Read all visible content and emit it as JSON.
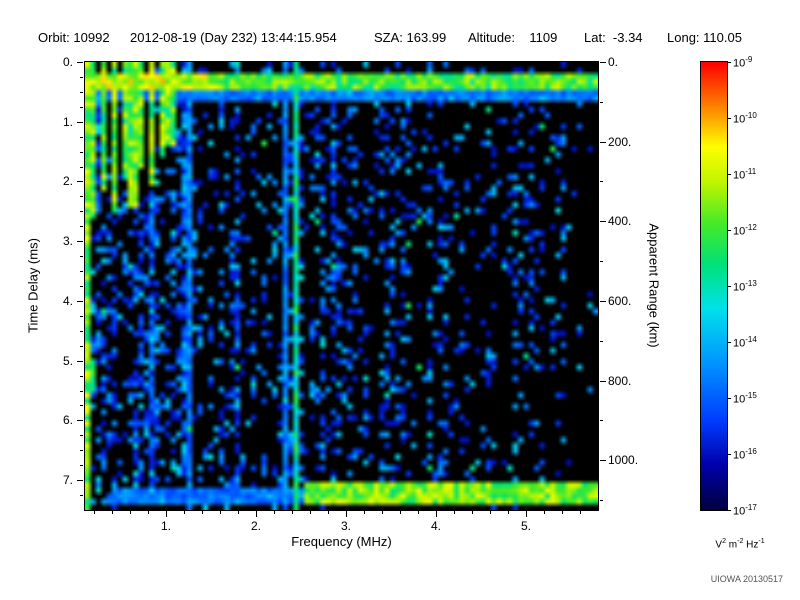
{
  "header": {
    "orbit": "Orbit: 10992",
    "datetime": "2012-08-19 (Day 232) 13:44:15.954",
    "sza": "SZA: 163.99",
    "altitude": "Altitude:    1109",
    "lat": "Lat:  -3.34",
    "long": "Long: 110.05"
  },
  "footer": {
    "watermark": "UIOWA 20130517"
  },
  "chart_data": {
    "type": "heatmap",
    "description": "Radar sounder ionogram: spectral density vs frequency and time delay, black background with blue/cyan/green speckle",
    "background": "#000000",
    "x_axis": {
      "label": "Frequency (MHz)",
      "min": 0.1,
      "max": 5.8,
      "major_ticks": [
        1,
        2,
        3,
        4,
        5
      ],
      "tick_labels": [
        "1.",
        "2.",
        "3.",
        "4.",
        "5."
      ],
      "minor_step": 0.2
    },
    "y_axis": {
      "label": "Time Delay (ms)",
      "min": 0,
      "max": 7.5,
      "major_ticks": [
        0,
        1,
        2,
        3,
        4,
        5,
        6,
        7
      ],
      "tick_labels": [
        "0.",
        "1.",
        "2.",
        "3.",
        "4.",
        "5.",
        "6.",
        "7."
      ],
      "minor_step": 0.25
    },
    "y2_axis": {
      "label": "Apparent Range (km)",
      "min": 0,
      "max": 1125,
      "major_ticks": [
        0,
        200,
        400,
        600,
        800,
        1000
      ],
      "tick_labels": [
        "0.",
        "200.",
        "400.",
        "600.",
        "800.",
        "1000."
      ],
      "minor_step": 100
    },
    "colorbar": {
      "scale": "log",
      "tick_exponents": [
        -9,
        -10,
        -11,
        -12,
        -13,
        -14,
        -15,
        -16,
        -17
      ],
      "units_parts": [
        [
          "V",
          "2"
        ],
        [
          "m",
          "-2"
        ],
        [
          "Hz",
          "-1"
        ]
      ],
      "stops": [
        [
          0,
          0,
          0,
          60
        ],
        [
          0.1,
          0,
          0,
          170
        ],
        [
          0.2,
          0,
          60,
          255
        ],
        [
          0.33,
          0,
          150,
          255
        ],
        [
          0.45,
          0,
          225,
          235
        ],
        [
          0.55,
          0,
          225,
          120
        ],
        [
          0.64,
          70,
          235,
          40
        ],
        [
          0.73,
          190,
          245,
          0
        ],
        [
          0.81,
          255,
          255,
          0
        ],
        [
          0.9,
          255,
          130,
          0
        ],
        [
          1,
          255,
          0,
          0
        ]
      ]
    },
    "speckle": {
      "amp": 0.62,
      "falloff": 1.8,
      "floor": 0.16,
      "bright_fraction": 0.08,
      "seed": 1234567
    },
    "gaps": [
      {
        "f_min": 0.32,
        "f_max": 1.05,
        "t_max": 2.2,
        "factor": 0.4
      },
      {
        "f_min": 1.5,
        "f_max": 1.62,
        "factor": 0.55
      },
      {
        "f_min": 1.85,
        "f_max": 2.15,
        "factor": 0.45
      },
      {
        "f_min": 5.45,
        "factor": 0.3
      },
      {
        "t_min": 7.45,
        "factor": 0.25
      },
      {
        "f_min": 4.6,
        "t_min": 5.2,
        "t_max": 7.05,
        "factor": 0.35
      }
    ],
    "features": [
      {
        "type": "hline",
        "t": 0.3,
        "half": 0.13,
        "base": 0.5,
        "rand": 0.25,
        "left_boost": 0.12,
        "boost_f_max": 1.6
      },
      {
        "type": "hline",
        "t": 0.55,
        "half": 0.07,
        "base": 0.22,
        "rand": 0.15
      },
      {
        "type": "harmonics",
        "spacing": 0.105,
        "count": 10,
        "half": 0.035,
        "base": 0.5,
        "rand": 0.3,
        "depths": [
          7.5,
          2.6,
          2.2,
          2.5,
          2.0,
          2.4,
          1.8,
          2.1,
          1.6,
          1.4
        ]
      },
      {
        "type": "vline",
        "f": 2.45,
        "half": 0.035,
        "base": 0.38,
        "rand": 0.25
      },
      {
        "type": "vline",
        "f": 2.3,
        "half": 0.03,
        "base": 0.2,
        "rand": 0.18
      },
      {
        "type": "vline",
        "f": 1.28,
        "half": 0.03,
        "base": 0.2,
        "rand": 0.18
      },
      {
        "type": "blob",
        "f": 0.17,
        "t": 5.25,
        "rf": 0.07,
        "rt": 0.3,
        "base": 0.5,
        "rand": 0.2
      },
      {
        "type": "band",
        "t_min": 7.05,
        "t_max": 7.45,
        "f_min": 2.55,
        "base": 0.55,
        "rand": 0.25
      },
      {
        "type": "band",
        "t_min": 7.1,
        "t_max": 7.4,
        "f_min": 0.4,
        "f_max": 2.55,
        "base": 0.2,
        "rand": 0.15
      }
    ]
  }
}
